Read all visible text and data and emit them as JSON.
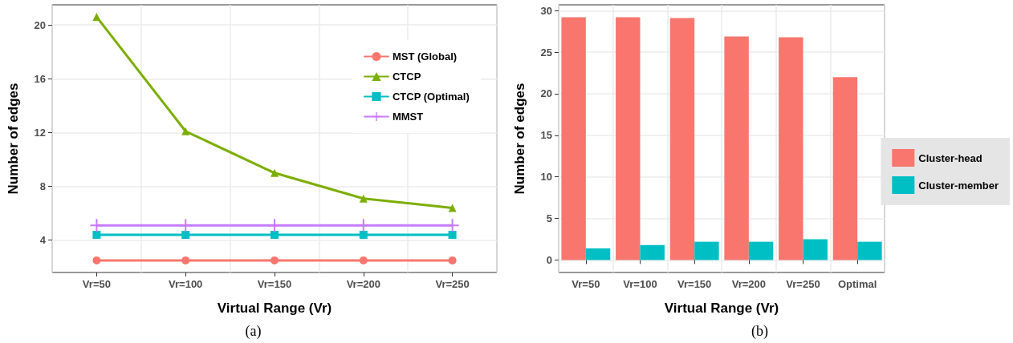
{
  "chart_data": [
    {
      "type": "line",
      "xlabel": "Virtual Range (Vr)",
      "ylabel": "Number of edges",
      "annotations": [
        "(a)"
      ],
      "categories": [
        "Vr=50",
        "Vr=100",
        "Vr=150",
        "Vr=200",
        "Vr=250"
      ],
      "ylim": [
        1.6,
        21.5
      ],
      "yticks": [
        4,
        8,
        12,
        16,
        20
      ],
      "grid": true,
      "legend": "top right",
      "series": [
        {
          "name": "MST (Global)",
          "color": "#f8766d",
          "marker": "circle",
          "values": [
            2.5,
            2.5,
            2.5,
            2.5,
            2.5
          ]
        },
        {
          "name": "CTCP",
          "color": "#7cae00",
          "marker": "triangle",
          "values": [
            20.6,
            12.1,
            9.0,
            7.1,
            6.4
          ]
        },
        {
          "name": "CTCP (Optimal)",
          "color": "#00bfc4",
          "marker": "square",
          "values": [
            4.4,
            4.4,
            4.4,
            4.4,
            4.4
          ]
        },
        {
          "name": "MMST",
          "color": "#c77cff",
          "marker": "cross",
          "values": [
            5.1,
            5.1,
            5.1,
            5.1,
            5.1
          ]
        }
      ]
    },
    {
      "type": "bar",
      "xlabel": "Virtual Range (Vr)",
      "ylabel": "Number of edges",
      "annotations": [
        "(b)"
      ],
      "categories": [
        "Vr=50",
        "Vr=100",
        "Vr=150",
        "Vr=200",
        "Vr=250",
        "Optimal"
      ],
      "ylim": [
        -1.5,
        30.7
      ],
      "yticks": [
        0,
        5,
        10,
        15,
        20,
        25,
        30
      ],
      "grid": true,
      "legend": "right",
      "series": [
        {
          "name": "Cluster-head",
          "color": "#f8766d",
          "values": [
            29.2,
            29.2,
            29.1,
            26.9,
            26.8,
            22.0
          ]
        },
        {
          "name": "Cluster-member",
          "color": "#00bfc4",
          "values": [
            1.4,
            1.8,
            2.2,
            2.2,
            2.5,
            2.2
          ]
        }
      ]
    }
  ]
}
